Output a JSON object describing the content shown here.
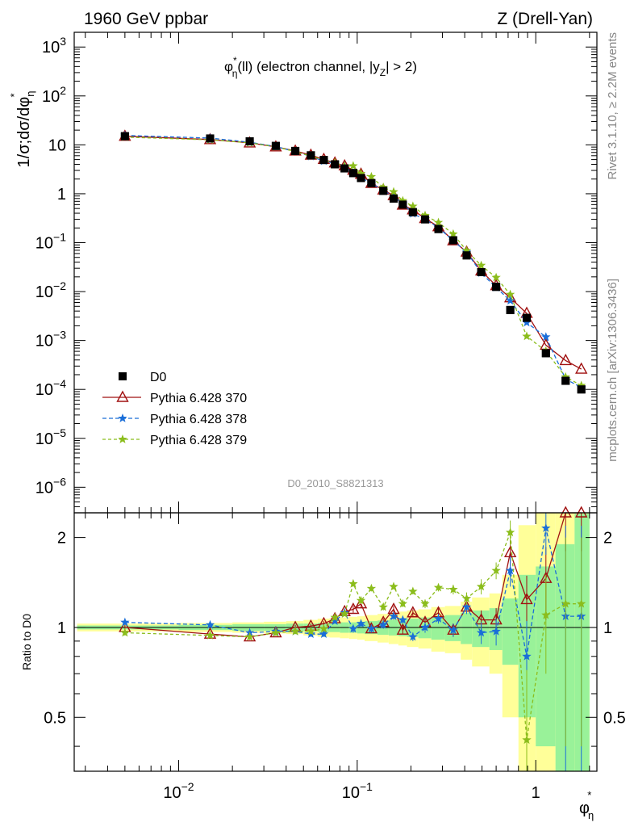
{
  "header": {
    "left": "1960 GeV ppbar",
    "right": "Z (Drell-Yan)"
  },
  "side_labels": {
    "rivet": "Rivet 3.1.10, ≥ 2.2M events",
    "mcplots": "mcplots.cern.ch [arXiv:1306.3436]"
  },
  "chart_data": {
    "type": "scatter",
    "title": "φ*η(ll) (electron channel, |yZ| > 2)",
    "title_parts": {
      "pre": "φ",
      "sup": "*",
      "sub": "η",
      "post": "(ll) (electron channel, |y",
      "sub2": "Z",
      "post2": "| > 2)"
    },
    "watermark": "D0_2010_S8821313",
    "xlabel": "φ*η",
    "ylabel": "1/σ;dσ/dφ*η",
    "ratio_ylabel": "Ratio to D0",
    "xscale": "log",
    "yscale": "log",
    "xlim": [
      0.0026,
      2.2
    ],
    "ylim": [
      3e-07,
      2000
    ],
    "ratio_ylim": [
      0.33,
      2.42
    ],
    "x_ticks": [
      {
        "v": 0.01,
        "base": "10",
        "exp": "−2"
      },
      {
        "v": 0.1,
        "base": "10",
        "exp": "−1"
      },
      {
        "v": 1,
        "base": "1",
        "exp": ""
      }
    ],
    "y_ticks": [
      {
        "v": 1000,
        "base": "10",
        "exp": "3"
      },
      {
        "v": 100,
        "base": "10",
        "exp": "2"
      },
      {
        "v": 10,
        "base": "10",
        "exp": ""
      },
      {
        "v": 1,
        "base": "1",
        "exp": ""
      },
      {
        "v": 0.1,
        "base": "10",
        "exp": "−1"
      },
      {
        "v": 0.01,
        "base": "10",
        "exp": "−2"
      },
      {
        "v": 0.001,
        "base": "10",
        "exp": "−3"
      },
      {
        "v": 0.0001,
        "base": "10",
        "exp": "−4"
      },
      {
        "v": 1e-05,
        "base": "10",
        "exp": "−5"
      },
      {
        "v": 1e-06,
        "base": "10",
        "exp": "−6"
      }
    ],
    "ratio_ticks": [
      {
        "v": 0.5,
        "label": "0.5"
      },
      {
        "v": 1,
        "label": "1"
      },
      {
        "v": 2,
        "label": "2"
      }
    ],
    "legend_position": "lower-left",
    "x": [
      0.005,
      0.015,
      0.025,
      0.035,
      0.045,
      0.055,
      0.065,
      0.075,
      0.085,
      0.095,
      0.105,
      0.12,
      0.14,
      0.16,
      0.18,
      0.205,
      0.24,
      0.285,
      0.345,
      0.41,
      0.495,
      0.6,
      0.72,
      0.89,
      1.14,
      1.47,
      1.8
    ],
    "bins": [
      [
        0.0027,
        0.01
      ],
      [
        0.01,
        0.02
      ],
      [
        0.02,
        0.03
      ],
      [
        0.03,
        0.04
      ],
      [
        0.04,
        0.05
      ],
      [
        0.05,
        0.06
      ],
      [
        0.06,
        0.07
      ],
      [
        0.07,
        0.08
      ],
      [
        0.08,
        0.09
      ],
      [
        0.09,
        0.1
      ],
      [
        0.1,
        0.11
      ],
      [
        0.11,
        0.13
      ],
      [
        0.13,
        0.15
      ],
      [
        0.15,
        0.17
      ],
      [
        0.17,
        0.19
      ],
      [
        0.19,
        0.22
      ],
      [
        0.22,
        0.26
      ],
      [
        0.26,
        0.31
      ],
      [
        0.31,
        0.38
      ],
      [
        0.38,
        0.44
      ],
      [
        0.44,
        0.55
      ],
      [
        0.55,
        0.65
      ],
      [
        0.65,
        0.8
      ],
      [
        0.8,
        1.0
      ],
      [
        1.0,
        1.29
      ],
      [
        1.29,
        1.65
      ],
      [
        1.65,
        2.0
      ]
    ],
    "band_inner": [
      0.015,
      0.02,
      0.025,
      0.025,
      0.03,
      0.03,
      0.035,
      0.035,
      0.04,
      0.04,
      0.045,
      0.05,
      0.055,
      0.06,
      0.065,
      0.07,
      0.08,
      0.09,
      0.1,
      0.12,
      0.14,
      0.16,
      0.25,
      0.5,
      0.6,
      0.9,
      1.4
    ],
    "band_outer": [
      0.03,
      0.035,
      0.04,
      0.045,
      0.05,
      0.06,
      0.07,
      0.075,
      0.08,
      0.085,
      0.09,
      0.1,
      0.11,
      0.12,
      0.13,
      0.14,
      0.15,
      0.17,
      0.18,
      0.22,
      0.26,
      0.3,
      0.5,
      1.2,
      1.5,
      1.5,
      1.5
    ],
    "series": [
      {
        "name": "D0",
        "color": "#000000",
        "marker": "square",
        "values": [
          15.0,
          13.5,
          11.8,
          9.5,
          7.5,
          6.1,
          4.9,
          4.0,
          3.3,
          2.65,
          2.1,
          1.65,
          1.15,
          0.8,
          0.6,
          0.42,
          0.3,
          0.19,
          0.112,
          0.055,
          0.025,
          0.0125,
          0.0042,
          0.0029,
          0.00055,
          0.00015,
          0.0001
        ]
      },
      {
        "name": "Pythia 6.428 370",
        "color": "#a01010",
        "marker": "triangle-open",
        "dash": "",
        "ratio": [
          1.0,
          0.95,
          0.93,
          0.96,
          1.0,
          1.01,
          1.03,
          1.07,
          1.13,
          1.15,
          1.2,
          0.99,
          1.04,
          1.15,
          0.98,
          1.12,
          1.04,
          1.12,
          0.98,
          1.17,
          1.06,
          1.06,
          1.78,
          1.24,
          1.46,
          2.6,
          2.6
        ],
        "err": [
          0.02,
          0.02,
          0.02,
          0.02,
          0.02,
          0.02,
          0.02,
          0.02,
          0.02,
          0.03,
          0.03,
          0.03,
          0.03,
          0.03,
          0.03,
          0.03,
          0.04,
          0.04,
          0.05,
          0.06,
          0.08,
          0.1,
          0.18,
          0.25,
          0.4,
          0.8,
          0.8
        ]
      },
      {
        "name": "Pythia 6.428 378",
        "color": "#1a6ed8",
        "marker": "star",
        "dash": "5,3",
        "ratio": [
          1.04,
          1.02,
          0.96,
          0.97,
          0.97,
          0.95,
          0.95,
          1.05,
          1.12,
          0.99,
          1.03,
          0.99,
          1.02,
          1.09,
          1.06,
          0.93,
          1.0,
          1.07,
          0.98,
          1.17,
          0.96,
          0.97,
          1.55,
          0.8,
          2.15,
          1.09,
          1.09
        ],
        "err": [
          0.02,
          0.02,
          0.02,
          0.02,
          0.02,
          0.02,
          0.02,
          0.02,
          0.02,
          0.03,
          0.03,
          0.03,
          0.03,
          0.03,
          0.03,
          0.03,
          0.04,
          0.04,
          0.05,
          0.06,
          0.08,
          0.1,
          0.18,
          0.25,
          0.4,
          1.1,
          1.1
        ]
      },
      {
        "name": "Pythia 6.428 379",
        "color": "#8bbd1c",
        "marker": "star",
        "dash": "4,3",
        "ratio": [
          0.96,
          0.94,
          0.93,
          0.96,
          0.97,
          0.97,
          0.99,
          1.08,
          1.11,
          1.4,
          1.23,
          1.35,
          1.17,
          1.37,
          1.2,
          1.32,
          1.2,
          1.36,
          1.34,
          1.25,
          1.37,
          1.55,
          2.08,
          0.42,
          1.1,
          1.2,
          1.2
        ],
        "err": [
          0.02,
          0.02,
          0.02,
          0.02,
          0.02,
          0.02,
          0.02,
          0.02,
          0.02,
          0.03,
          0.03,
          0.03,
          0.03,
          0.03,
          0.03,
          0.03,
          0.04,
          0.04,
          0.05,
          0.06,
          0.08,
          0.1,
          0.2,
          0.3,
          0.4,
          0.8,
          0.8
        ]
      }
    ]
  }
}
